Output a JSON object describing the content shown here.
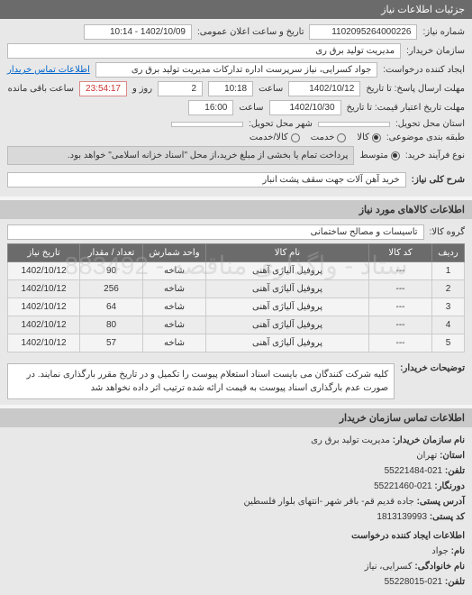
{
  "header": {
    "title": "جزئیات اطلاعات نیاز"
  },
  "top": {
    "req_no_label": "شماره نیاز:",
    "req_no": "1102095264000226",
    "announce_label": "تاریخ و ساعت اعلان عمومی:",
    "announce_value": "1402/10/09 - 10:14",
    "buyer_org_label": "سازمان خریدار:",
    "buyer_org": "مدیریت تولید برق ری",
    "requester_label": "ایجاد کننده درخواست:",
    "requester": "جواد کسرایی، نیاز سرپرست اداره تدارکات مدیریت تولید برق ری",
    "contact_link": "اطلاعات تماس خریدار",
    "deadline_label": "مهلت ارسال پاسخ: تا تاریخ",
    "deadline_date": "1402/10/12",
    "time_label": "ساعت",
    "deadline_time": "10:18",
    "days_field": "2",
    "days_label": "روز و",
    "countdown": "23:54:17",
    "remain_label": "ساعت باقی مانده",
    "validity_label": "مهلت تاریخ اعتبار قیمت: تا تاریخ",
    "validity_date": "1402/10/30",
    "validity_time": "16:00",
    "delivery_prov_label": "استان محل تحویل:",
    "delivery_city_label": "شهر محل تحویل:",
    "category_label": "طبقه بندی موضوعی:",
    "cat_options": [
      {
        "label": "کالا",
        "checked": true
      },
      {
        "label": "خدمت",
        "checked": false
      },
      {
        "label": "کالا/خدمت",
        "checked": false
      }
    ],
    "process_label": "نوع فرآیند خرید:",
    "proc_options": [
      {
        "label": "متوسط",
        "checked": true
      }
    ],
    "process_note": "پرداخت تمام یا بخشی از مبلغ خرید،از محل \"اسناد خزانه اسلامی\" خواهد بود."
  },
  "summary": {
    "label": "شرح کلی نیاز:",
    "value": "خرید آهن آلات جهت سقف پشت انبار"
  },
  "goods_header": "اطلاعات کالاهای مورد نیاز",
  "group": {
    "label": "گروه کالا:",
    "value": "تاسیسات و مصالح ساختمانی"
  },
  "table": {
    "columns": [
      "ردیف",
      "کد کالا",
      "نام کالا",
      "واحد شمارش",
      "تعداد / مقدار",
      "تاریخ نیاز"
    ],
    "rows": [
      [
        "1",
        "---",
        "پروفیل آلیاژی آهنی",
        "شاخه",
        "90",
        "1402/10/12"
      ],
      [
        "2",
        "---",
        "پروفیل آلیاژی آهنی",
        "شاخه",
        "256",
        "1402/10/12"
      ],
      [
        "3",
        "---",
        "پروفیل آلیاژی آهنی",
        "شاخه",
        "64",
        "1402/10/12"
      ],
      [
        "4",
        "---",
        "پروفیل آلیاژی آهنی",
        "شاخه",
        "80",
        "1402/10/12"
      ],
      [
        "5",
        "---",
        "پروفیل آلیاژی آهنی",
        "شاخه",
        "57",
        "1402/10/12"
      ]
    ],
    "col_widths": [
      "36px",
      "70px",
      "auto",
      "70px",
      "70px",
      "80px"
    ],
    "header_bg": "#6b6b6b",
    "row_bg_even": "#ececec",
    "row_bg_odd": "#f4f4f4"
  },
  "watermark": "ستاد - واگذاری مناقصه - 883492",
  "explain": {
    "label": "توضیحات خریدار:",
    "text": "کلیه شرکت کنندگان می بایست اسناد استعلام پیوست را تکمیل و در تاریخ مقرر بارگذاری نمایند. در صورت عدم بارگذاری اسناد پیوست به قیمت ارائه شده ترتیب اثر داده نخواهد شد"
  },
  "contact": {
    "header": "اطلاعات تماس سازمان خریدار",
    "org_label": "نام سازمان خریدار:",
    "org": "مدیریت تولید برق ری",
    "prov_label": "استان:",
    "prov": "تهران",
    "tel_label": "تلفن:",
    "tel": "021-55221484",
    "fax_label": "دورنگار:",
    "fax": "021-55221460",
    "addr_label": "آدرس پستی:",
    "addr": "جاده قدیم قم- باقر شهر -انتهای بلوار فلسطین",
    "zip_label": "کد پستی:",
    "zip": "1813139993",
    "creator_header": "اطلاعات ایجاد کننده درخواست",
    "name_label": "نام:",
    "name": "جواد",
    "family_label": "نام خانوادگی:",
    "family": "کسرایی، نیاز",
    "ctel_label": "تلفن:",
    "ctel": "021-55228015"
  }
}
